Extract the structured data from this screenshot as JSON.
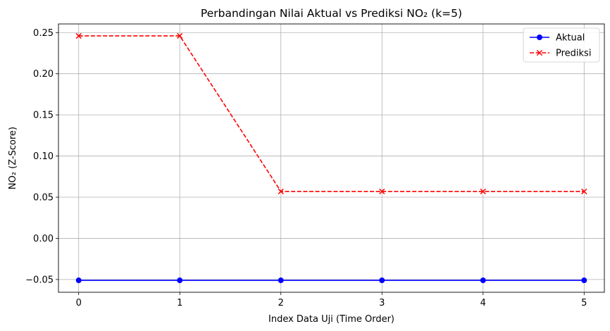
{
  "chart_data": {
    "type": "line",
    "title": "Perbandingan Nilai Aktual vs Prediksi NO₂ (k=5)",
    "xlabel": "Index Data Uji (Time Order)",
    "ylabel": "NO₂ (Z-Score)",
    "x": [
      0,
      1,
      2,
      3,
      4,
      5
    ],
    "xlim": [
      -0.2,
      5.2
    ],
    "ylim": [
      -0.0655,
      0.2605
    ],
    "xticks": [
      0,
      1,
      2,
      3,
      4,
      5
    ],
    "xtick_labels": [
      "0",
      "1",
      "2",
      "3",
      "4",
      "5"
    ],
    "yticks": [
      -0.05,
      0.0,
      0.05,
      0.1,
      0.15,
      0.2,
      0.25
    ],
    "ytick_labels": [
      "−0.05",
      "0.00",
      "0.05",
      "0.10",
      "0.15",
      "0.20",
      "0.25"
    ],
    "grid": true,
    "legend_position": "top-right",
    "series": [
      {
        "name": "Aktual",
        "values": [
          -0.051,
          -0.051,
          -0.051,
          -0.051,
          -0.051,
          -0.051
        ],
        "color": "#0000ff",
        "marker": "circle",
        "linestyle": "solid"
      },
      {
        "name": "Prediksi",
        "values": [
          0.246,
          0.246,
          0.057,
          0.057,
          0.057,
          0.057
        ],
        "color": "#ff0000",
        "marker": "x",
        "linestyle": "dashed"
      }
    ]
  }
}
